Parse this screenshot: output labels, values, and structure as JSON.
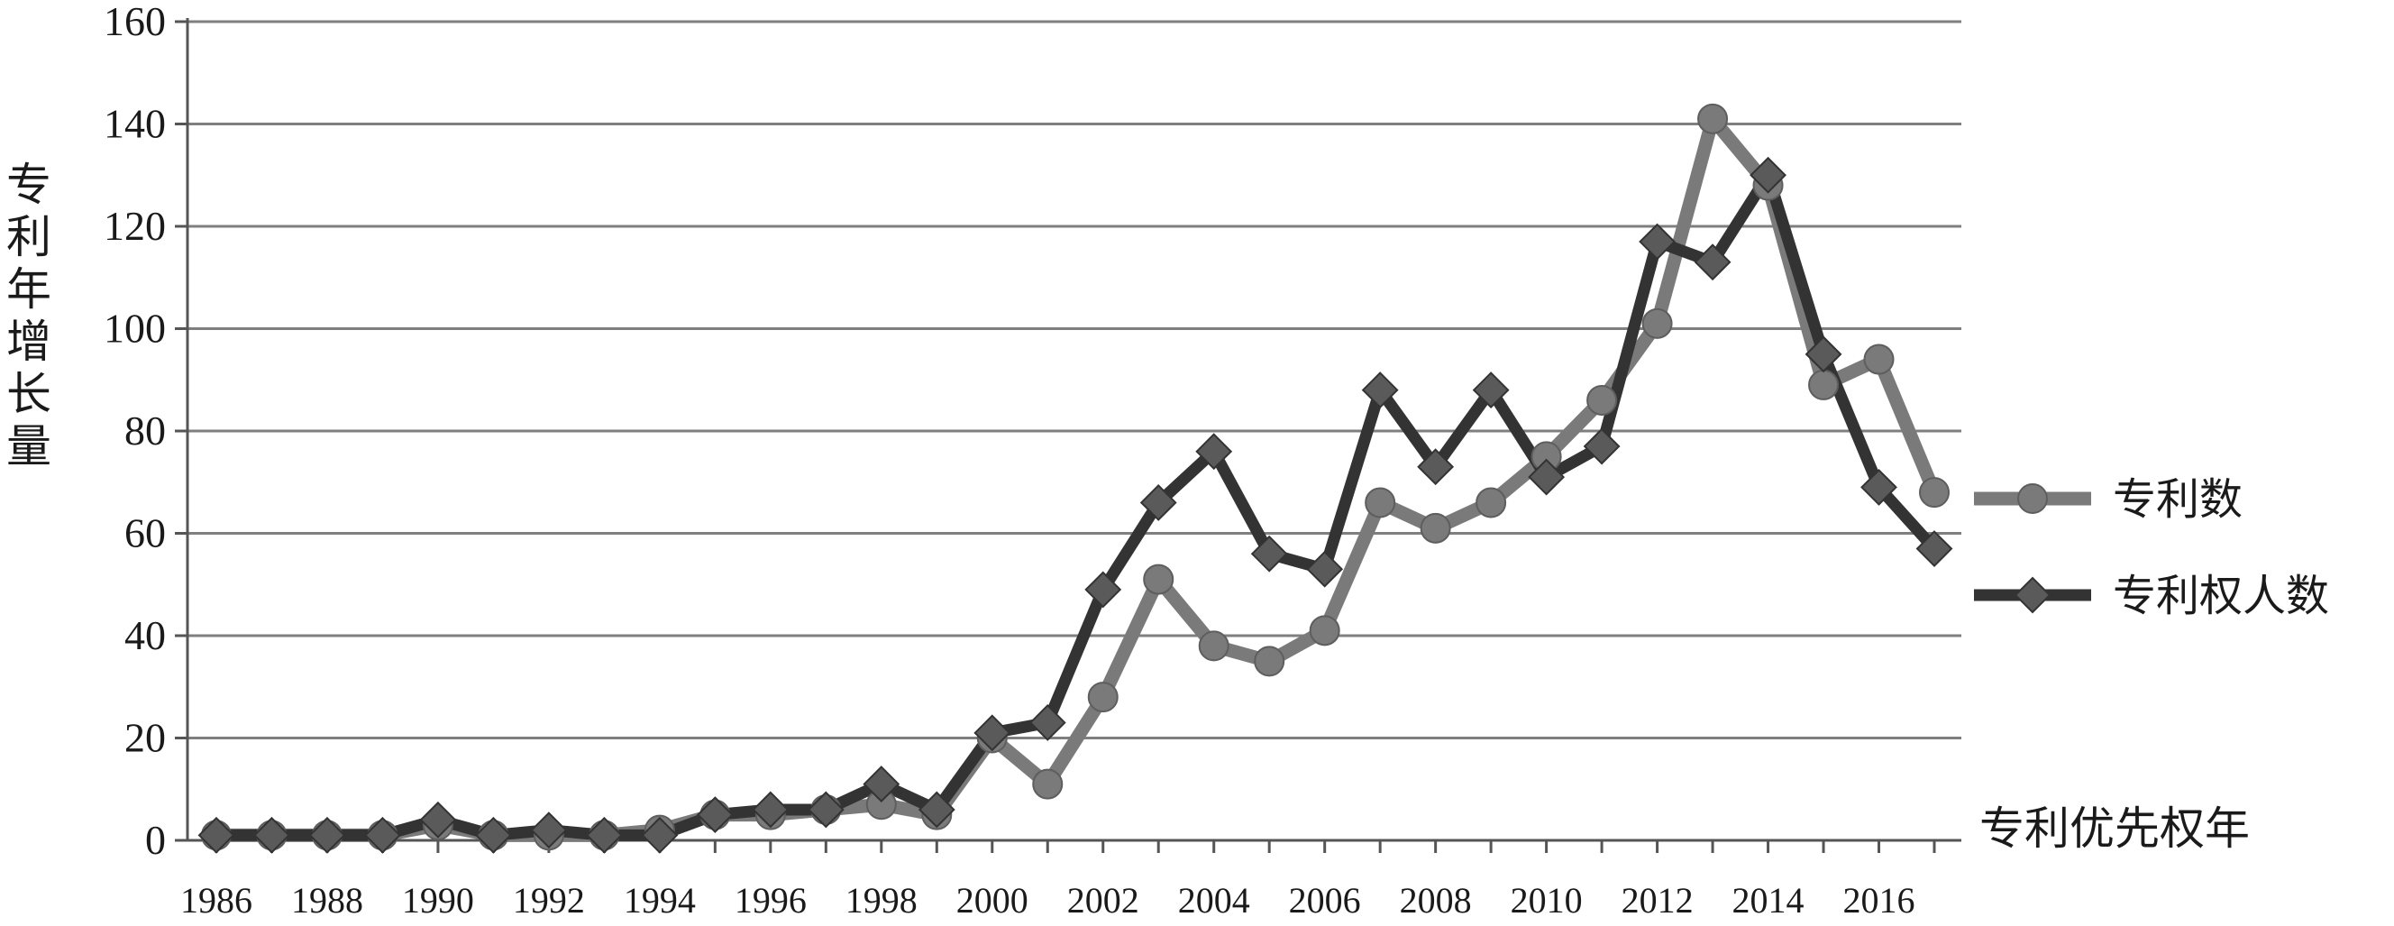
{
  "chart_data": {
    "type": "line",
    "title": "",
    "ylabel": "专利年增长量",
    "xlabel": "专利优先权年",
    "ylim": [
      0,
      160
    ],
    "yticks": [
      "0",
      "20",
      "40",
      "60",
      "80",
      "100",
      "120",
      "140",
      "160"
    ],
    "xtick_labels": [
      "1986",
      "1988",
      "1990",
      "1992",
      "1994",
      "1996",
      "1998",
      "2000",
      "2002",
      "2004",
      "2006",
      "2008",
      "2010",
      "2012",
      "2014",
      "2016"
    ],
    "x": [
      1986,
      1987,
      1988,
      1989,
      1990,
      1991,
      1992,
      1993,
      1994,
      1995,
      1996,
      1997,
      1998,
      1999,
      2000,
      2001,
      2002,
      2003,
      2004,
      2005,
      2006,
      2007,
      2008,
      2009,
      2010,
      2011,
      2012,
      2013,
      2014,
      2015,
      2016,
      2017
    ],
    "grid": "horizontal",
    "legend_position": "right",
    "series": [
      {
        "name": "专利数",
        "color": "#7a7a7a",
        "marker": "circle",
        "values": [
          1,
          1,
          1,
          1,
          3,
          1,
          1,
          1,
          2,
          5,
          5,
          6,
          7,
          5,
          20,
          11,
          28,
          51,
          38,
          35,
          41,
          66,
          61,
          66,
          75,
          86,
          101,
          141,
          128,
          89,
          94,
          68
        ]
      },
      {
        "name": "专利权人数",
        "color": "#333333",
        "marker": "diamond",
        "values": [
          1,
          1,
          1,
          1,
          4,
          1,
          2,
          1,
          1,
          5,
          6,
          6,
          11,
          6,
          21,
          23,
          49,
          66,
          76,
          56,
          53,
          88,
          73,
          88,
          71,
          77,
          117,
          113,
          130,
          95,
          69,
          57
        ]
      }
    ]
  }
}
